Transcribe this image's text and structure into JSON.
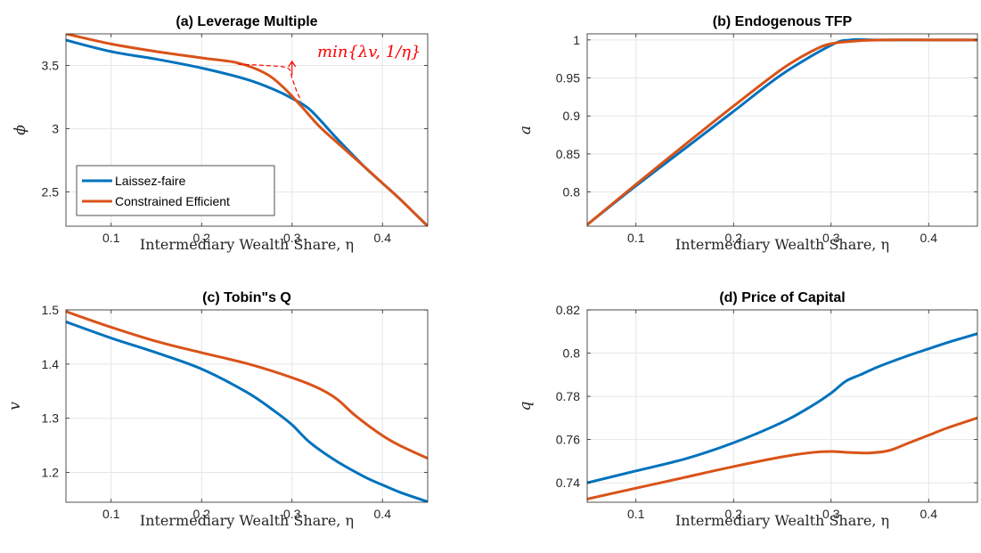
{
  "colors": {
    "laissez_faire": "#0072BD",
    "constrained_efficient": "#D95319",
    "grid": "#e6e6e6",
    "axis": "#262626",
    "annotation": "#ff0000"
  },
  "chart_data": [
    {
      "id": "a",
      "type": "line",
      "title": "(a) Leverage Multiple",
      "xlabel": "Intermediary Wealth Share, η",
      "ylabel": "ϕ",
      "xlim": [
        0.05,
        0.45
      ],
      "ylim": [
        2.23,
        3.75
      ],
      "xticks": [
        0.1,
        0.2,
        0.3,
        0.4
      ],
      "xtick_labels": [
        "0.1",
        "0.2",
        "0.3",
        "0.4"
      ],
      "yticks": [
        2.5,
        3,
        3.5
      ],
      "ytick_labels": [
        "2.5",
        "3",
        "3.5"
      ],
      "grid": true,
      "legend": {
        "placement": "lower-left",
        "entries": [
          "Laissez-faire",
          "Constrained Efficient"
        ]
      },
      "annotation": {
        "text": "min{λv, 1/η}",
        "curve": {
          "x": [
            0.24,
            0.27,
            0.295,
            0.3,
            0.305,
            0.31
          ],
          "y": [
            3.51,
            3.5,
            3.48,
            3.4,
            3.3,
            3.22
          ]
        }
      },
      "series": [
        {
          "name": "Laissez-faire",
          "color_key": "laissez_faire",
          "x": [
            0.05,
            0.1,
            0.15,
            0.2,
            0.25,
            0.28,
            0.3,
            0.32,
            0.35,
            0.38,
            0.4,
            0.42,
            0.45
          ],
          "y": [
            3.7,
            3.61,
            3.55,
            3.48,
            3.39,
            3.31,
            3.24,
            3.15,
            2.92,
            2.7,
            2.57,
            2.44,
            2.23
          ]
        },
        {
          "name": "Constrained Efficient",
          "color_key": "constrained_efficient",
          "x": [
            0.05,
            0.1,
            0.15,
            0.2,
            0.24,
            0.27,
            0.29,
            0.31,
            0.33,
            0.35,
            0.38,
            0.4,
            0.42,
            0.45
          ],
          "y": [
            3.75,
            3.67,
            3.61,
            3.56,
            3.52,
            3.44,
            3.33,
            3.18,
            3.02,
            2.89,
            2.7,
            2.57,
            2.44,
            2.23
          ]
        }
      ]
    },
    {
      "id": "b",
      "type": "line",
      "title": "(b) Endogenous TFP",
      "xlabel": "Intermediary Wealth Share, η",
      "ylabel": "a",
      "xlim": [
        0.05,
        0.45
      ],
      "ylim": [
        0.755,
        1.008
      ],
      "xticks": [
        0.1,
        0.2,
        0.3,
        0.4
      ],
      "xtick_labels": [
        "0.1",
        "0.2",
        "0.3",
        "0.4"
      ],
      "yticks": [
        0.8,
        0.85,
        0.9,
        0.95,
        1
      ],
      "ytick_labels": [
        "0.8",
        "0.85",
        "0.9",
        "0.95",
        "1"
      ],
      "grid": true,
      "series": [
        {
          "name": "Laissez-faire",
          "color_key": "laissez_faire",
          "x": [
            0.05,
            0.1,
            0.15,
            0.2,
            0.25,
            0.3,
            0.32,
            0.35,
            0.4,
            0.45
          ],
          "y": [
            0.757,
            0.808,
            0.857,
            0.906,
            0.955,
            0.993,
            1.0,
            1.0,
            1.0,
            1.0
          ]
        },
        {
          "name": "Constrained Efficient",
          "color_key": "constrained_efficient",
          "x": [
            0.05,
            0.1,
            0.15,
            0.2,
            0.25,
            0.28,
            0.3,
            0.33,
            0.36,
            0.4,
            0.45
          ],
          "y": [
            0.757,
            0.81,
            0.862,
            0.913,
            0.962,
            0.985,
            0.995,
            0.999,
            1.0,
            1.0,
            1.0
          ]
        }
      ]
    },
    {
      "id": "c",
      "type": "line",
      "title": "(c) Tobin\"s Q",
      "xlabel": "Intermediary Wealth Share, η",
      "ylabel": "v",
      "xlim": [
        0.05,
        0.45
      ],
      "ylim": [
        1.145,
        1.5
      ],
      "xticks": [
        0.1,
        0.2,
        0.3,
        0.4
      ],
      "xtick_labels": [
        "0.1",
        "0.2",
        "0.3",
        "0.4"
      ],
      "yticks": [
        1.2,
        1.3,
        1.4,
        1.5
      ],
      "ytick_labels": [
        "1.2",
        "1.3",
        "1.4",
        "1.5"
      ],
      "grid": true,
      "series": [
        {
          "name": "Laissez-faire",
          "color_key": "laissez_faire",
          "x": [
            0.05,
            0.1,
            0.15,
            0.2,
            0.25,
            0.28,
            0.3,
            0.32,
            0.35,
            0.38,
            0.4,
            0.42,
            0.45
          ],
          "y": [
            1.478,
            1.448,
            1.421,
            1.391,
            1.348,
            1.314,
            1.288,
            1.255,
            1.22,
            1.192,
            1.177,
            1.163,
            1.146
          ]
        },
        {
          "name": "Constrained Efficient",
          "color_key": "constrained_efficient",
          "x": [
            0.05,
            0.1,
            0.15,
            0.2,
            0.25,
            0.3,
            0.33,
            0.35,
            0.37,
            0.4,
            0.42,
            0.45
          ],
          "y": [
            1.497,
            1.468,
            1.442,
            1.421,
            1.401,
            1.375,
            1.355,
            1.335,
            1.305,
            1.268,
            1.249,
            1.226
          ]
        }
      ]
    },
    {
      "id": "d",
      "type": "line",
      "title": "(d) Price of Capital",
      "xlabel": "Intermediary Wealth Share, η",
      "ylabel": "q",
      "xlim": [
        0.05,
        0.45
      ],
      "ylim": [
        0.731,
        0.82
      ],
      "xticks": [
        0.1,
        0.2,
        0.3,
        0.4
      ],
      "xtick_labels": [
        "0.1",
        "0.2",
        "0.3",
        "0.4"
      ],
      "yticks": [
        0.74,
        0.76,
        0.78,
        0.8,
        0.82
      ],
      "ytick_labels": [
        "0.74",
        "0.76",
        "0.78",
        "0.8",
        "0.82"
      ],
      "grid": true,
      "series": [
        {
          "name": "Laissez-faire",
          "color_key": "laissez_faire",
          "x": [
            0.05,
            0.1,
            0.15,
            0.2,
            0.25,
            0.28,
            0.3,
            0.315,
            0.33,
            0.35,
            0.38,
            0.4,
            0.42,
            0.45
          ],
          "y": [
            0.74,
            0.7455,
            0.751,
            0.7585,
            0.768,
            0.7755,
            0.7815,
            0.787,
            0.79,
            0.794,
            0.799,
            0.802,
            0.805,
            0.809
          ]
        },
        {
          "name": "Constrained Efficient",
          "color_key": "constrained_efficient",
          "x": [
            0.05,
            0.1,
            0.15,
            0.2,
            0.25,
            0.28,
            0.3,
            0.32,
            0.34,
            0.36,
            0.38,
            0.4,
            0.42,
            0.45
          ],
          "y": [
            0.7325,
            0.7375,
            0.7425,
            0.7475,
            0.752,
            0.754,
            0.7545,
            0.754,
            0.7538,
            0.755,
            0.7585,
            0.762,
            0.7655,
            0.77
          ]
        }
      ]
    }
  ]
}
